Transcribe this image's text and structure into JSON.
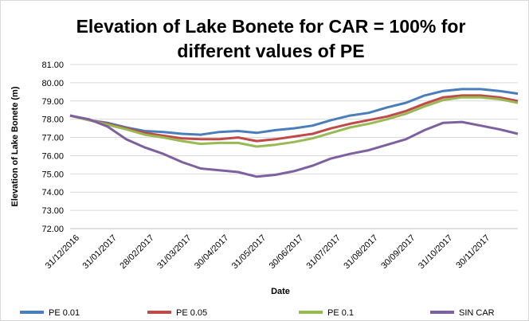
{
  "chart_data": {
    "type": "line",
    "title": "Elevation of Lake Bonete for CAR = 100% for different values of PE",
    "x_label": "Date",
    "y_label": "Elevation of Lake Bonete (m)",
    "categories": [
      "31/12/2016",
      null,
      "31/01/2017",
      null,
      "28/02/2017",
      null,
      "31/03/2017",
      null,
      "30/04/2017",
      null,
      "31/05/2017",
      null,
      "30/06/2017",
      null,
      "31/07/2017",
      null,
      "31/08/2017",
      null,
      "30/09/2017",
      null,
      "31/10/2017",
      null,
      "30/11/2017",
      null,
      null
    ],
    "series": [
      {
        "name": "PE 0.01",
        "color": "#4a7ebb",
        "values": [
          78.2,
          77.95,
          77.8,
          77.55,
          77.35,
          77.3,
          77.2,
          77.15,
          77.3,
          77.35,
          77.25,
          77.4,
          77.5,
          77.65,
          77.95,
          78.2,
          78.35,
          78.65,
          78.9,
          79.3,
          79.55,
          79.65,
          79.65,
          79.55,
          79.4
        ]
      },
      {
        "name": "PE 0.05",
        "color": "#be4b48",
        "values": [
          78.2,
          77.95,
          77.75,
          77.5,
          77.25,
          77.1,
          76.95,
          76.9,
          76.9,
          77.0,
          76.8,
          76.9,
          77.05,
          77.2,
          77.5,
          77.75,
          77.95,
          78.15,
          78.45,
          78.85,
          79.2,
          79.3,
          79.3,
          79.2,
          79.0
        ]
      },
      {
        "name": "PE 0.1",
        "color": "#98b954",
        "values": [
          78.2,
          77.95,
          77.7,
          77.45,
          77.15,
          77.0,
          76.8,
          76.65,
          76.7,
          76.7,
          76.5,
          76.6,
          76.75,
          76.95,
          77.25,
          77.55,
          77.75,
          78.0,
          78.3,
          78.7,
          79.05,
          79.2,
          79.2,
          79.1,
          78.9
        ]
      },
      {
        "name": "SIN CAR",
        "color": "#7d60a0",
        "values": [
          78.2,
          78.0,
          77.6,
          76.9,
          76.45,
          76.1,
          75.65,
          75.3,
          75.2,
          75.1,
          74.85,
          74.95,
          75.15,
          75.45,
          75.85,
          76.1,
          76.3,
          76.6,
          76.9,
          77.4,
          77.8,
          77.85,
          77.65,
          77.45,
          77.2
        ]
      }
    ],
    "ylim": [
      72,
      81
    ],
    "yticks": [
      {
        "value": 72,
        "label": "72.00"
      },
      {
        "value": 73,
        "label": "73.00"
      },
      {
        "value": 74,
        "label": "74.00"
      },
      {
        "value": 75,
        "label": "75.00"
      },
      {
        "value": 76,
        "label": "76.00"
      },
      {
        "value": 77,
        "label": "77.00"
      },
      {
        "value": 78,
        "label": "78.00"
      },
      {
        "value": 79,
        "label": "79.00"
      },
      {
        "value": 80,
        "label": "80.00"
      },
      {
        "value": 81,
        "label": "81.00"
      }
    ],
    "grid": true,
    "legend": "bottom"
  }
}
